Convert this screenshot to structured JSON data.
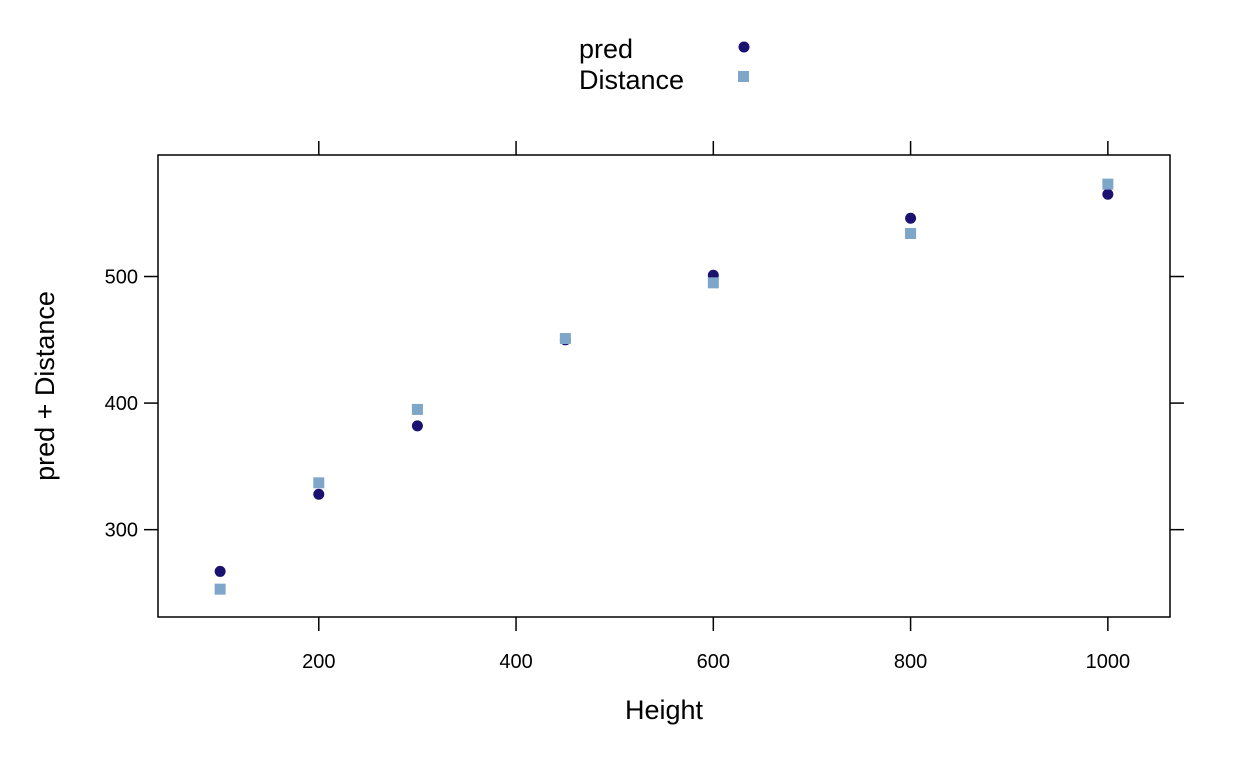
{
  "chart_data": {
    "type": "scatter",
    "title": "",
    "xlabel": "Height",
    "ylabel": "pred + Distance",
    "xlim": [
      37,
      1063
    ],
    "ylim": [
      231,
      596
    ],
    "x_ticks": [
      200,
      400,
      600,
      800,
      1000
    ],
    "y_ticks": [
      300,
      400,
      500
    ],
    "grid": false,
    "legend_position": "top",
    "series": [
      {
        "name": "pred",
        "marker": "circle",
        "color": "#1a1170",
        "x": [
          100,
          200,
          300,
          450,
          600,
          800,
          1000
        ],
        "y": [
          267,
          328,
          382,
          450,
          501,
          546,
          565
        ]
      },
      {
        "name": "Distance",
        "marker": "square",
        "color": "#7ea6c8",
        "x": [
          100,
          200,
          300,
          450,
          600,
          800,
          1000
        ],
        "y": [
          253,
          337,
          395,
          451,
          495,
          534,
          573
        ]
      }
    ]
  }
}
